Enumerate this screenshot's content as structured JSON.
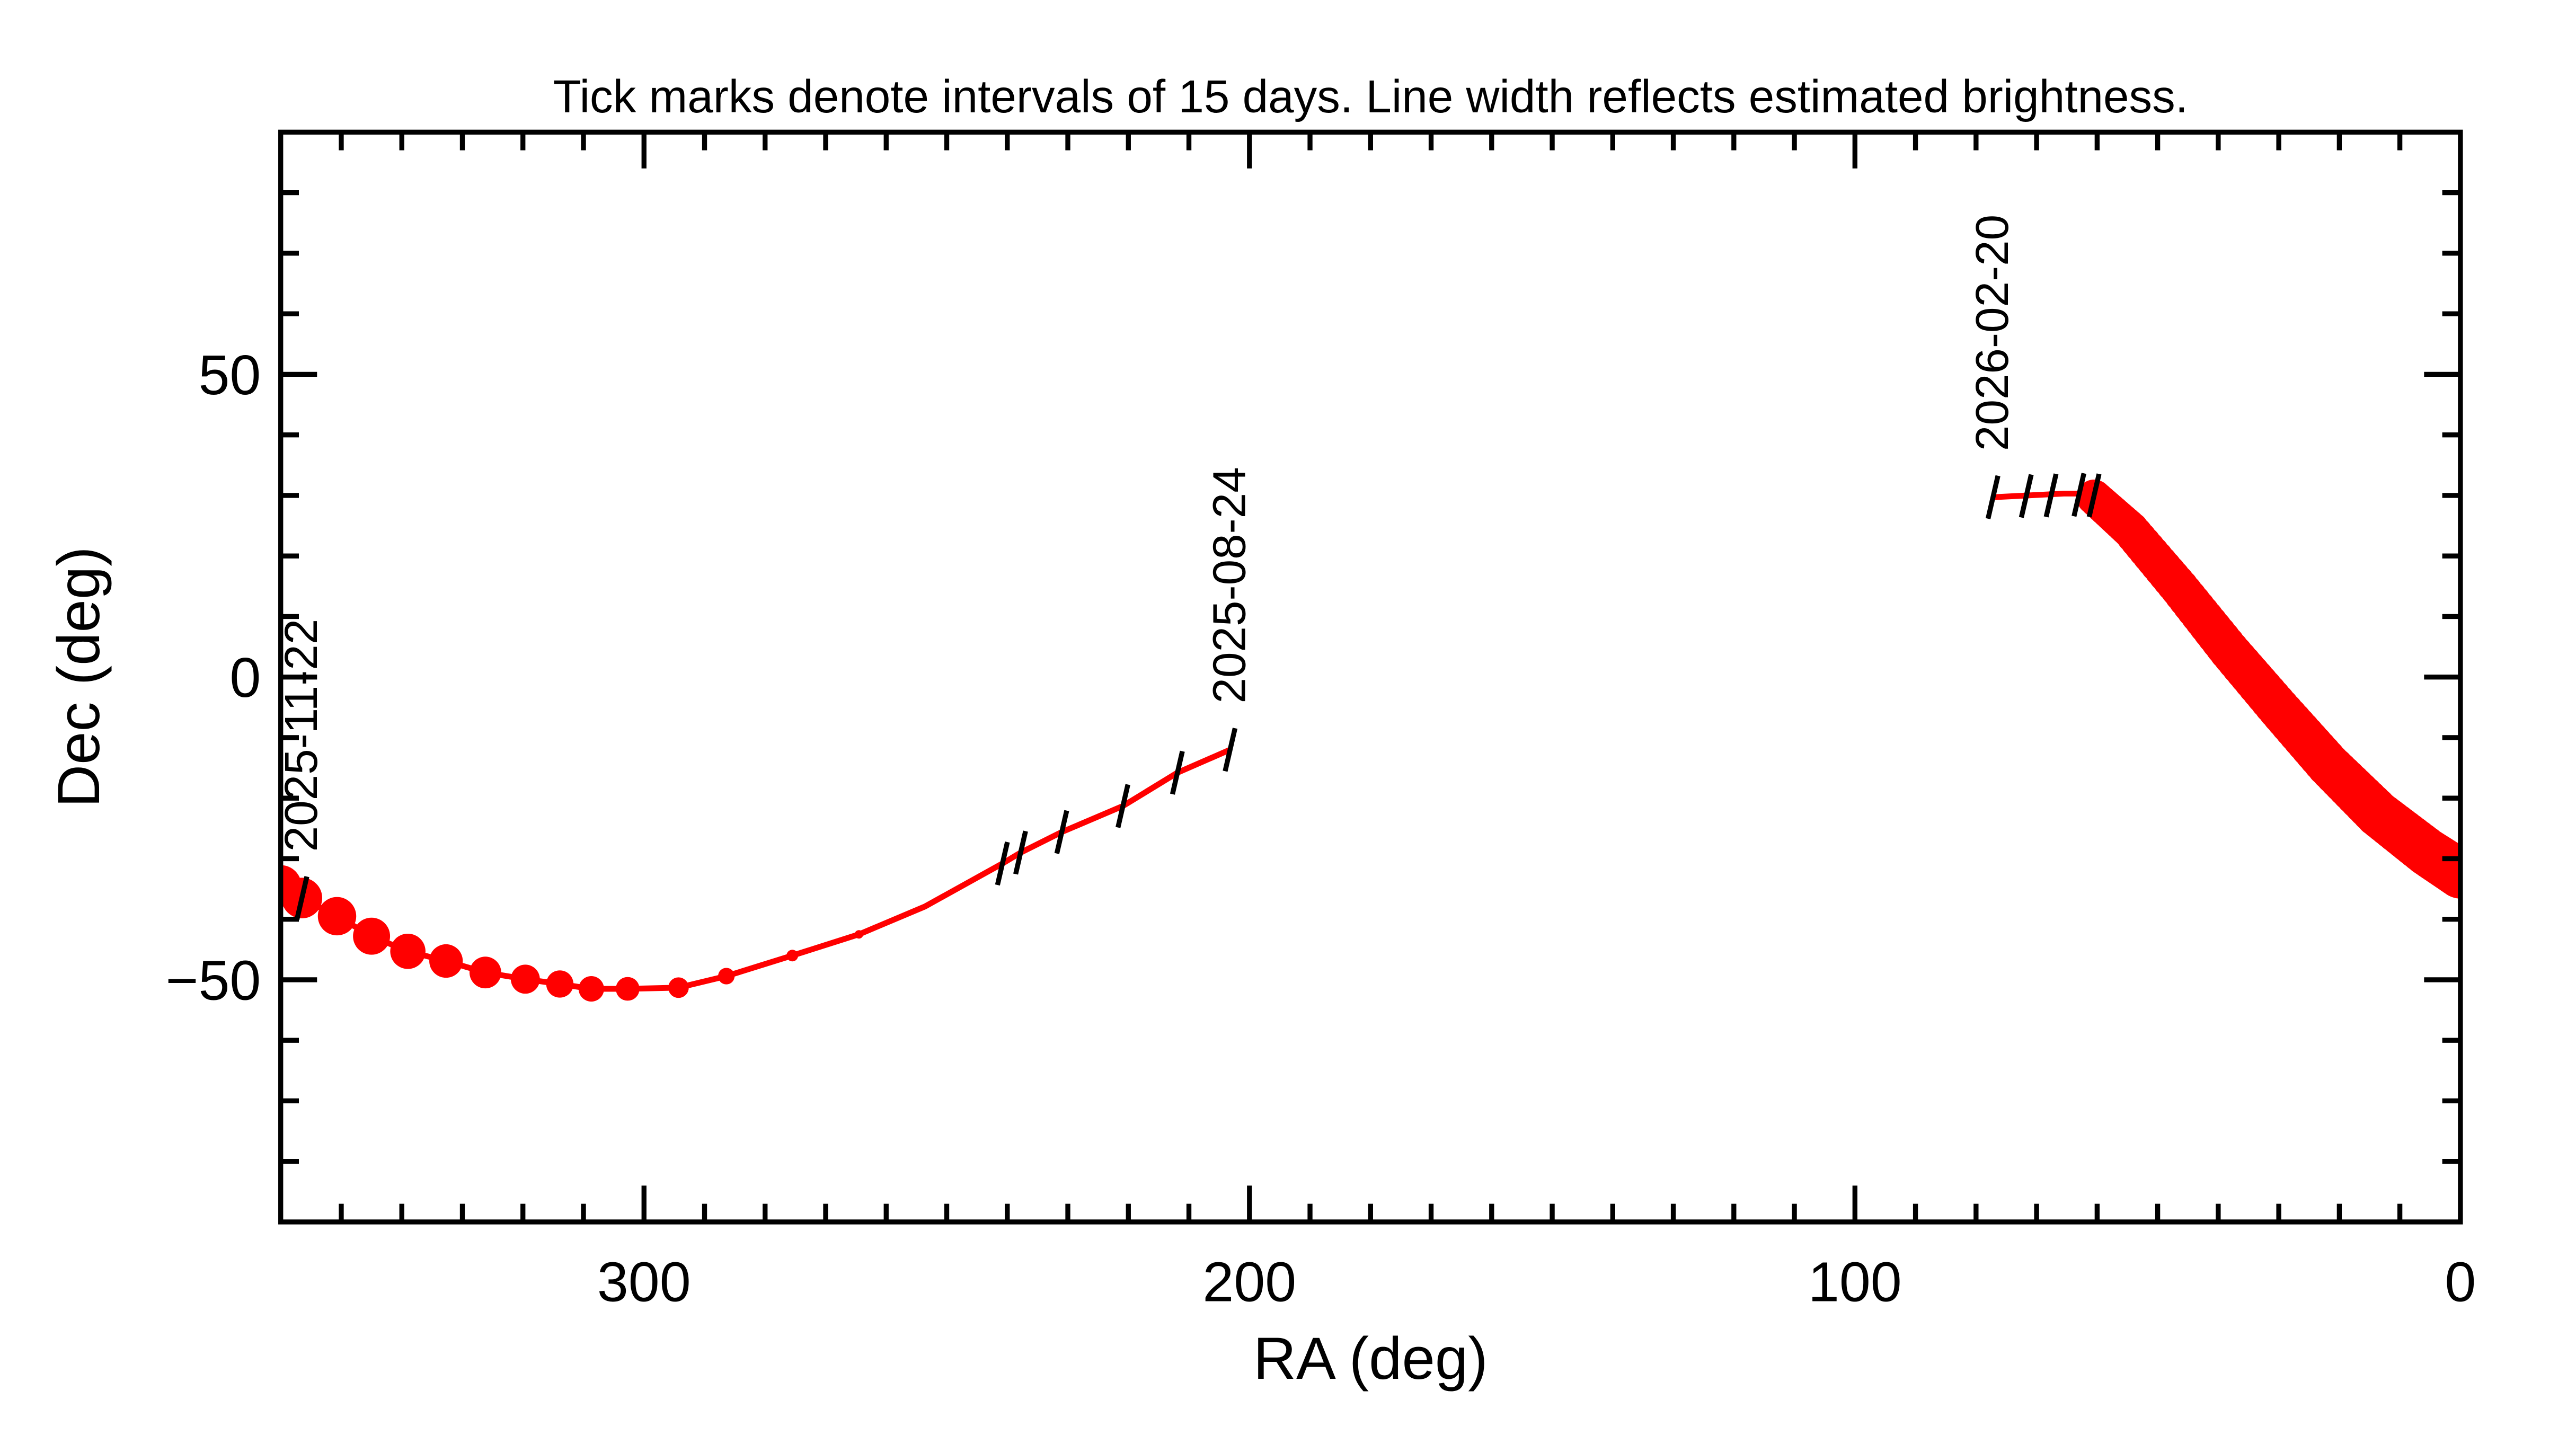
{
  "chart_data": {
    "type": "line",
    "title": "Tick marks denote intervals of 15 days.  Line width reflects estimated brightness.",
    "xlabel": "RA (deg)",
    "ylabel": "Dec (deg)",
    "xlim": [
      360,
      0
    ],
    "ylim": [
      -90,
      90
    ],
    "x_ticks": [
      300,
      200,
      100,
      0
    ],
    "y_ticks": [
      -50,
      0,
      50
    ],
    "x_tick_labels": [
      "300",
      "200",
      "100",
      "0"
    ],
    "y_tick_labels": [
      "−50",
      "0",
      "50"
    ],
    "grid": false,
    "line_color": "#ff0000",
    "tick_color": "#000000",
    "segments": [
      {
        "points": [
          [
            203.2,
            -12.0,
            0.03
          ],
          [
            211.9,
            -15.8,
            0.03
          ],
          [
            220.9,
            -21.3,
            0.03
          ],
          [
            231.0,
            -25.6,
            0.03
          ],
          [
            237.8,
            -29.0,
            0.03
          ],
          [
            240.8,
            -30.8,
            0.03
          ],
          [
            253.6,
            -37.9,
            0.05
          ],
          [
            264.5,
            -42.5,
            0.08
          ],
          [
            275.5,
            -46.0,
            0.15
          ],
          [
            286.4,
            -49.4,
            0.26
          ],
          [
            294.3,
            -51.3,
            0.35
          ],
          [
            302.7,
            -51.5,
            0.42
          ],
          [
            308.7,
            -51.5,
            0.46
          ],
          [
            313.9,
            -50.7,
            0.5
          ],
          [
            319.6,
            -49.9,
            0.54
          ],
          [
            326.2,
            -48.8,
            0.6
          ],
          [
            332.7,
            -46.9,
            0.64
          ],
          [
            339.0,
            -45.3,
            0.68
          ],
          [
            345.0,
            -42.8,
            0.72
          ],
          [
            350.7,
            -39.5,
            0.75
          ],
          [
            356.5,
            -36.5,
            0.8
          ],
          [
            360.0,
            -34.5,
            0.82
          ]
        ]
      },
      {
        "points": [
          [
            0.0,
            -32.5,
            1.0
          ],
          [
            5.5,
            -28.9,
            0.97
          ],
          [
            13.6,
            -22.6,
            0.93
          ],
          [
            21.8,
            -14.5,
            0.88
          ],
          [
            30.0,
            -5.2,
            0.84
          ],
          [
            38.2,
            4.4,
            0.8
          ],
          [
            46.4,
            14.7,
            0.76
          ],
          [
            54.5,
            24.3,
            0.72
          ],
          [
            60.5,
            29.7,
            0.68
          ],
          [
            62.0,
            30.3,
            0.03
          ],
          [
            65.5,
            30.3,
            0.03
          ],
          [
            77.2,
            29.7,
            0.03
          ]
        ]
      }
    ],
    "date_ticks": [
      [
        203.2,
        -12.0
      ],
      [
        211.9,
        -15.8
      ],
      [
        220.9,
        -21.3
      ],
      [
        231.0,
        -25.6
      ],
      [
        237.8,
        -29.0
      ],
      [
        240.8,
        -30.8
      ],
      [
        356.5,
        -36.5
      ],
      [
        60.5,
        30.0
      ],
      [
        63.0,
        30.1
      ],
      [
        67.6,
        30.0
      ],
      [
        71.7,
        29.9
      ],
      [
        77.2,
        29.7
      ]
    ],
    "date_labels": [
      {
        "text": "2025-08-24",
        "ra": 203.2,
        "dec": -12.0
      },
      {
        "text": "2025-11-22",
        "ra": 356.5,
        "dec": -36.5
      },
      {
        "text": "2026-02-20",
        "ra": 77.2,
        "dec": 29.7
      }
    ]
  }
}
